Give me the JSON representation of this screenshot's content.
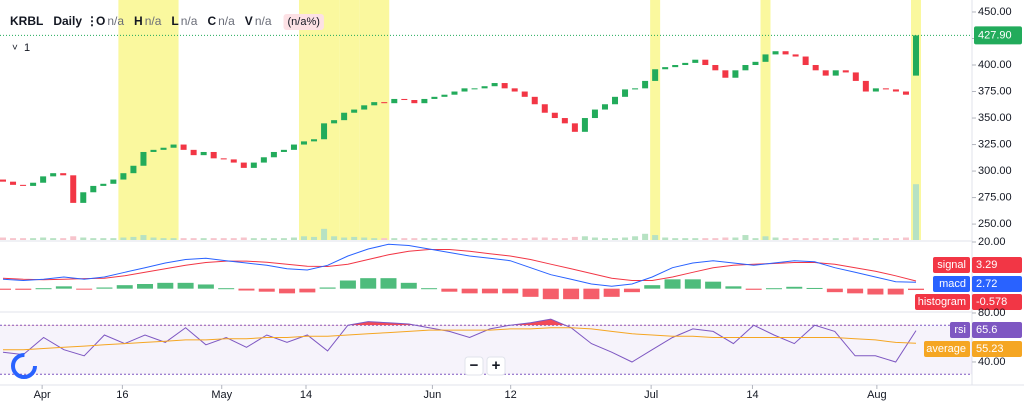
{
  "chart_data": {
    "type": "candlestick",
    "symbol": "KRBL",
    "interval": "Daily",
    "legend_fields": [
      {
        "key": "O",
        "value": "n/a"
      },
      {
        "key": "H",
        "value": "n/a"
      },
      {
        "key": "L",
        "value": "n/a"
      },
      {
        "key": "C",
        "value": "n/a"
      },
      {
        "key": "V",
        "value": "n/a"
      }
    ],
    "change": "(n/a%)",
    "indicator_count": "1",
    "colors": {
      "up": "#22ab5b",
      "down": "#f23645",
      "up_volume": "#b7e2c3",
      "down_volume": "#f7c4cc",
      "highlight": "#f8f57d"
    },
    "open": [
      292,
      290,
      287,
      286,
      289,
      295,
      298,
      296,
      270,
      280,
      286,
      288,
      292,
      298,
      305,
      318,
      320,
      322,
      325,
      320,
      315,
      318,
      312,
      311,
      308,
      303,
      308,
      313,
      318,
      320,
      325,
      328,
      330,
      345,
      348,
      355,
      358,
      362,
      365,
      364,
      368,
      367,
      364,
      368,
      370,
      372,
      375,
      378,
      378,
      380,
      383,
      378,
      375,
      370,
      363,
      355,
      350,
      345,
      337,
      350,
      358,
      363,
      370,
      377,
      378,
      385,
      396,
      398,
      400,
      402,
      405,
      400,
      395,
      388,
      395,
      400,
      403,
      410,
      413,
      410,
      408,
      400,
      395,
      390,
      395,
      393,
      385,
      375,
      378,
      377,
      375,
      390
    ],
    "close": [
      290,
      287,
      286,
      289,
      295,
      298,
      296,
      270,
      280,
      286,
      288,
      292,
      298,
      305,
      318,
      320,
      322,
      325,
      320,
      315,
      318,
      312,
      311,
      308,
      303,
      308,
      313,
      318,
      320,
      325,
      328,
      330,
      345,
      348,
      355,
      358,
      362,
      365,
      364,
      368,
      367,
      364,
      368,
      370,
      372,
      375,
      378,
      378,
      380,
      383,
      378,
      375,
      370,
      363,
      355,
      350,
      345,
      337,
      350,
      358,
      363,
      370,
      377,
      378,
      385,
      396,
      398,
      400,
      402,
      405,
      400,
      395,
      388,
      395,
      400,
      403,
      410,
      413,
      410,
      408,
      400,
      395,
      390,
      395,
      393,
      385,
      375,
      378,
      377,
      375,
      372,
      427.9
    ],
    "volume": [
      4,
      3,
      3,
      3,
      4,
      3,
      3,
      6,
      4,
      3,
      3,
      3,
      4,
      5,
      8,
      4,
      3,
      3,
      3,
      3,
      3,
      3,
      3,
      3,
      4,
      3,
      3,
      3,
      3,
      4,
      6,
      5,
      18,
      6,
      4,
      5,
      4,
      3,
      3,
      3,
      3,
      3,
      3,
      3,
      3,
      3,
      3,
      3,
      3,
      3,
      3,
      3,
      3,
      4,
      4,
      3,
      3,
      5,
      6,
      4,
      3,
      3,
      4,
      6,
      10,
      8,
      4,
      3,
      3,
      3,
      3,
      3,
      4,
      4,
      8,
      3,
      6,
      4,
      3,
      3,
      3,
      3,
      3,
      3,
      3,
      4,
      3,
      3,
      3,
      3,
      4,
      90
    ],
    "highlights": [
      [
        12,
        17
      ],
      [
        30,
        33
      ],
      [
        34,
        35
      ],
      [
        36,
        38
      ],
      [
        65,
        65
      ],
      [
        76,
        76
      ],
      [
        91,
        91
      ]
    ],
    "ylim": [
      235,
      461.3
    ],
    "yticks": [
      {
        "value": 450,
        "label": "450.00"
      },
      {
        "value": 425,
        "label": "425.00"
      },
      {
        "value": 400,
        "label": "400.00"
      },
      {
        "value": 375,
        "label": "375.00"
      },
      {
        "value": 350,
        "label": "350.00"
      },
      {
        "value": 325,
        "label": "325.00"
      },
      {
        "value": 300,
        "label": "300.00"
      },
      {
        "value": 275,
        "label": "275.00"
      },
      {
        "value": 250,
        "label": "250.00"
      }
    ],
    "last_price": {
      "value": 427.9,
      "label": "427.90"
    },
    "xticks": [
      {
        "value": 3.9,
        "label": "Apr"
      },
      {
        "value": 11.9,
        "label": "16"
      },
      {
        "value": 21.8,
        "label": "May"
      },
      {
        "value": 30.2,
        "label": "14"
      },
      {
        "value": 42.8,
        "label": "Jun"
      },
      {
        "value": 50.6,
        "label": "12"
      },
      {
        "value": 64.6,
        "label": "Jul"
      },
      {
        "value": 74.7,
        "label": "14"
      },
      {
        "value": 87.1,
        "label": "Aug"
      }
    ],
    "macd": {
      "ylim": [
        -10,
        20
      ],
      "yticks": [
        {
          "value": 20,
          "label": "20.00"
        }
      ],
      "series": [
        {
          "name": "signal",
          "color": "#f23645",
          "values": [
            4.5,
            4,
            3.8,
            4,
            4.3,
            4.5,
            5.5,
            7,
            8.5,
            10,
            11.2,
            11.8,
            11.8,
            11.3,
            10.5,
            9.6,
            9.5,
            10.5,
            12.5,
            14.5,
            16,
            16.8,
            16.8,
            16,
            15,
            14,
            12.5,
            10.5,
            8.5,
            6.5,
            4.5,
            3.5,
            3.5,
            5,
            7,
            9,
            10,
            10.5,
            10.8,
            11.2,
            11.2,
            10.5,
            9,
            7.5,
            5.5,
            3.29
          ]
        },
        {
          "name": "macd",
          "color": "#2962ff",
          "values": [
            4,
            3.5,
            4,
            5,
            4,
            5,
            7,
            9,
            11,
            12.5,
            13,
            12,
            11,
            10,
            8.5,
            8,
            10,
            14,
            17,
            19,
            18.5,
            17,
            15.5,
            14,
            13,
            12,
            9,
            6,
            4,
            2,
            1,
            2,
            5,
            9,
            11,
            12,
            11,
            10,
            11,
            12,
            11.5,
            9,
            7,
            5,
            3,
            2.72
          ]
        }
      ],
      "histogram": {
        "name": "histogram",
        "color": "#f23645",
        "values": [
          -0.5,
          -0.5,
          0.2,
          1,
          -0.3,
          0.5,
          1.5,
          2,
          2.5,
          2.5,
          1.8,
          0.2,
          -0.8,
          -1.3,
          -2,
          -1.6,
          0.5,
          3.5,
          4.5,
          4.5,
          2.5,
          0.2,
          -1.3,
          -2,
          -2,
          -2,
          -3.5,
          -4.5,
          -4.5,
          -4.5,
          -3.5,
          -1.5,
          1.5,
          4,
          4,
          3,
          1,
          -0.5,
          0.2,
          0.8,
          0.3,
          -1.5,
          -2,
          -2.5,
          -2.5,
          -0.578
        ]
      }
    },
    "rsi": {
      "ylim": [
        22,
        80
      ],
      "yticks": [
        {
          "value": 80,
          "label": "80.00"
        },
        {
          "value": 40,
          "label": "40.00"
        }
      ],
      "bands": [
        30,
        70
      ],
      "overbought_color": "#f23645",
      "series": [
        {
          "name": "rsi",
          "color": "#7e57c2",
          "values": [
            48,
            46,
            60,
            50,
            45,
            62,
            55,
            62,
            56,
            68,
            54,
            60,
            52,
            62,
            56,
            62,
            49,
            70,
            73,
            72,
            71,
            68,
            65,
            60,
            67,
            70,
            72,
            75,
            68,
            55,
            48,
            40,
            50,
            60,
            67,
            65,
            55,
            70,
            62,
            55,
            70,
            65,
            45,
            45,
            40,
            65.6
          ]
        },
        {
          "name": "average",
          "color": "#f5a623",
          "values": [
            50,
            50,
            51,
            52,
            53,
            54,
            55,
            56,
            57,
            58,
            58,
            59,
            59,
            60,
            60,
            61,
            61,
            62,
            63,
            64,
            65,
            66,
            66,
            66,
            66,
            67,
            67,
            68,
            68,
            67,
            65,
            63,
            62,
            61,
            61,
            60,
            60,
            60,
            60,
            60,
            60,
            60,
            59,
            58,
            56,
            55.23
          ]
        }
      ]
    },
    "zoom_controls": [
      "−",
      "+"
    ]
  }
}
